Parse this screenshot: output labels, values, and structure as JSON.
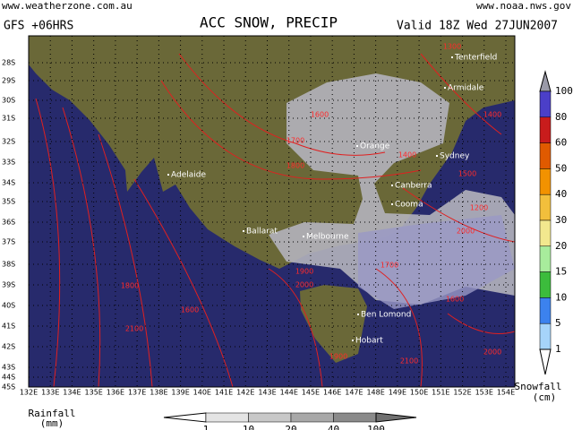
{
  "header": {
    "left_url": "www.weatherzone.com.au",
    "right_url": "www.noaa.nws.gov",
    "model": "GFS +06HRS",
    "title": "ACC SNOW, PRECIP",
    "valid": "Valid 18Z Wed 27JUN2007"
  },
  "map": {
    "latitudes": [
      "28S",
      "29S",
      "30S",
      "31S",
      "32S",
      "33S",
      "34S",
      "35S",
      "36S",
      "37S",
      "38S",
      "39S",
      "40S",
      "41S",
      "42S",
      "43S",
      "44S",
      "45S"
    ],
    "longitudes": [
      "132E",
      "133E",
      "134E",
      "135E",
      "136E",
      "137E",
      "138E",
      "139E",
      "140E",
      "141E",
      "142E",
      "143E",
      "144E",
      "145E",
      "146E",
      "147E",
      "148E",
      "149E",
      "150E",
      "151E",
      "152E",
      "153E",
      "154E"
    ],
    "places": [
      "Tenterfield",
      "Armidale",
      "Orange",
      "Sydney",
      "Adelaide",
      "Canberra",
      "Cooma",
      "Ballarat",
      "Melbourne",
      "Ben Lomond",
      "Hobart"
    ],
    "contour_labels": [
      "1600",
      "1700",
      "1800",
      "1400",
      "1500",
      "1200",
      "2000",
      "1900",
      "2000",
      "1800",
      "1600",
      "2100",
      "1900",
      "2100",
      "2000",
      "1600",
      "1700",
      "1300",
      "1400"
    ]
  },
  "snowfall_legend": {
    "title": "Snowfall",
    "unit": "(cm)",
    "levels": [
      100,
      80,
      60,
      50,
      40,
      30,
      20,
      15,
      10,
      5,
      1
    ],
    "colors": [
      "#4b3fc8",
      "#c81c1c",
      "#e05a00",
      "#f29200",
      "#f2bf3c",
      "#f2e88e",
      "#a8ec9c",
      "#3cbc3c",
      "#3c82ee",
      "#a6d4fa"
    ]
  },
  "rainfall_legend": {
    "title": "Rainfall",
    "unit": "(mm)",
    "levels": [
      1,
      10,
      20,
      40,
      100
    ],
    "colors": [
      "#e4e4e4",
      "#c8c8c8",
      "#a8a8a8",
      "#8a8a8a"
    ]
  }
}
